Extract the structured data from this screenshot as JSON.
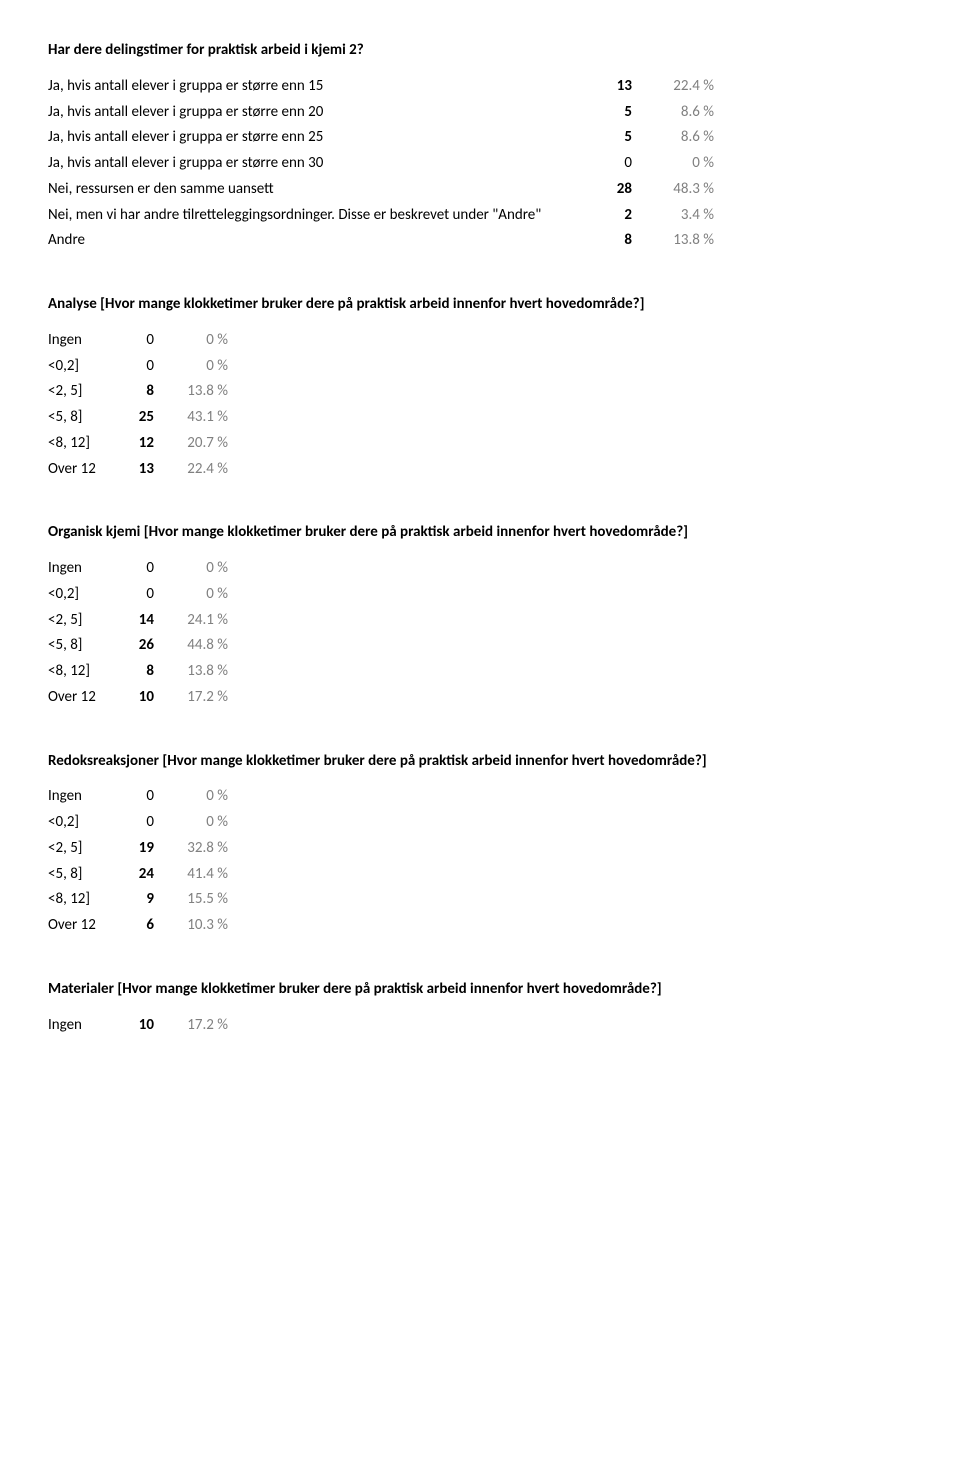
{
  "colors": {
    "text": "#000000",
    "muted": "#808080",
    "background": "#ffffff"
  },
  "typography": {
    "font_family": "Calibri",
    "body_fontsize_pt": 11,
    "title_weight": "bold"
  },
  "sections": [
    {
      "title": "Har dere delingstimer for praktisk arbeid i kjemi 2?",
      "layout": "wide",
      "rows": [
        {
          "label": "Ja, hvis antall elever i gruppa er større enn 15",
          "count": "13",
          "pct": "22.4 %",
          "bold": true
        },
        {
          "label": "Ja, hvis antall elever i gruppa er større enn 20",
          "count": "5",
          "pct": "8.6 %",
          "bold": true
        },
        {
          "label": "Ja, hvis antall elever i gruppa er større enn 25",
          "count": "5",
          "pct": "8.6 %",
          "bold": true
        },
        {
          "label": "Ja, hvis antall elever i gruppa er større enn 30",
          "count": "0",
          "pct": "0 %",
          "bold": true
        },
        {
          "label": "Nei, ressursen er den samme uansett",
          "count": "28",
          "pct": "48.3 %",
          "bold": true
        },
        {
          "label": "Nei, men vi har andre tilretteleggingsordninger. Disse er beskrevet under \"Andre\"",
          "count": "2",
          "pct": "3.4 %",
          "bold": true
        },
        {
          "label": "Andre",
          "count": "8",
          "pct": "13.8 %",
          "bold": true
        }
      ]
    },
    {
      "title": "Analyse [Hvor mange klokketimer bruker dere på praktisk arbeid innenfor hvert hovedområde?]",
      "layout": "narrow",
      "rows": [
        {
          "label": "Ingen",
          "count": "0",
          "pct": "0 %",
          "bold": true
        },
        {
          "label": "<0,2]",
          "count": "0",
          "pct": "0 %",
          "bold": true
        },
        {
          "label": "<2, 5]",
          "count": "8",
          "pct": "13.8 %",
          "bold": true
        },
        {
          "label": "<5, 8]",
          "count": "25",
          "pct": "43.1 %",
          "bold": true
        },
        {
          "label": "<8, 12]",
          "count": "12",
          "pct": "20.7 %",
          "bold": true
        },
        {
          "label": "Over 12",
          "count": "13",
          "pct": "22.4 %",
          "bold": true
        }
      ]
    },
    {
      "title": "Organisk kjemi [Hvor mange klokketimer bruker dere på praktisk arbeid innenfor hvert hovedområde?]",
      "layout": "narrow",
      "rows": [
        {
          "label": "Ingen",
          "count": "0",
          "pct": "0 %",
          "bold": true
        },
        {
          "label": "<0,2]",
          "count": "0",
          "pct": "0 %",
          "bold": true
        },
        {
          "label": "<2, 5]",
          "count": "14",
          "pct": "24.1 %",
          "bold": true
        },
        {
          "label": "<5, 8]",
          "count": "26",
          "pct": "44.8 %",
          "bold": true
        },
        {
          "label": "<8, 12]",
          "count": "8",
          "pct": "13.8 %",
          "bold": true
        },
        {
          "label": "Over 12",
          "count": "10",
          "pct": "17.2 %",
          "bold": true
        }
      ]
    },
    {
      "title": "Redoksreaksjoner [Hvor mange klokketimer bruker dere på praktisk arbeid innenfor hvert hovedområde?]",
      "layout": "narrow",
      "rows": [
        {
          "label": "Ingen",
          "count": "0",
          "pct": "0 %",
          "bold": true
        },
        {
          "label": "<0,2]",
          "count": "0",
          "pct": "0 %",
          "bold": true
        },
        {
          "label": "<2, 5]",
          "count": "19",
          "pct": "32.8 %",
          "bold": true
        },
        {
          "label": "<5, 8]",
          "count": "24",
          "pct": "41.4 %",
          "bold": true
        },
        {
          "label": "<8, 12]",
          "count": "9",
          "pct": "15.5 %",
          "bold": true
        },
        {
          "label": "Over 12",
          "count": "6",
          "pct": "10.3 %",
          "bold": true
        }
      ]
    },
    {
      "title": "Materialer [Hvor mange klokketimer bruker dere på praktisk arbeid innenfor hvert hovedområde?]",
      "layout": "single",
      "rows": [
        {
          "label": "Ingen",
          "count": "10",
          "pct": "17.2 %",
          "bold": true
        }
      ]
    }
  ]
}
